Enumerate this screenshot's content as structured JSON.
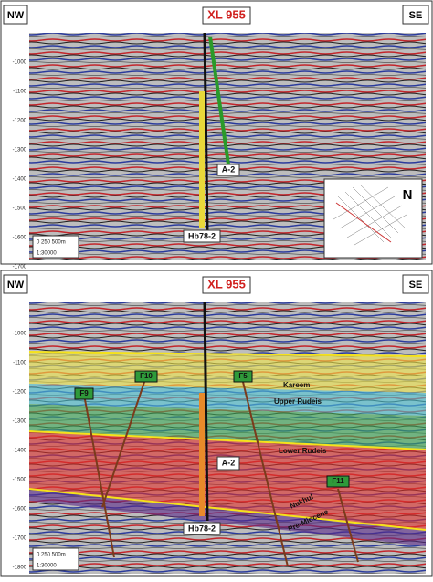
{
  "panels": [
    {
      "left": "NW",
      "right": "SE",
      "title": "XL 955",
      "wells": [
        "A-2",
        "Hb78-2"
      ],
      "depth_ticks": [
        "-1000",
        "-1100",
        "-1200",
        "-1300",
        "-1400",
        "-1500",
        "-1600",
        "-1700"
      ],
      "scale": {
        "bar": "0 250 500m",
        "ratio": "1:30000"
      }
    },
    {
      "left": "NW",
      "right": "SE",
      "title": "XL 955",
      "wells": [
        "A-2",
        "Hb78-2"
      ],
      "depth_ticks": [
        "-1000",
        "-1100",
        "-1200",
        "-1300",
        "-1400",
        "-1500",
        "-1600",
        "-1700",
        "-1800"
      ],
      "scale": {
        "bar": "0 250 500m",
        "ratio": "1:30000"
      },
      "formations": [
        "Kareem",
        "Upper Rudeis",
        "Lower Rudeis",
        "Nukhul",
        "Pre-Miocene"
      ],
      "faults": [
        "F9",
        "F10",
        "F5",
        "F11"
      ]
    }
  ],
  "inset": {
    "north": "N"
  }
}
